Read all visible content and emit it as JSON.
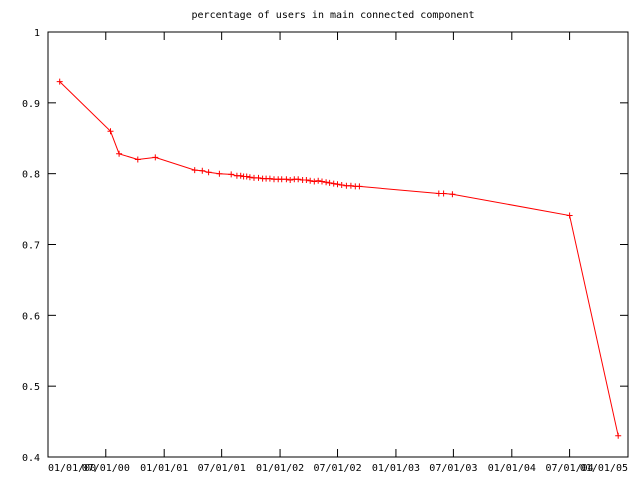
{
  "chart_data": {
    "type": "line",
    "title": "percentage of users in main connected component",
    "xlabel": "",
    "ylabel": "",
    "ylim": [
      0.4,
      1.0
    ],
    "grid": false,
    "legend": "none",
    "yticks": [
      "0.4",
      "0.5",
      "0.6",
      "0.7",
      "0.8",
      "0.9",
      "1"
    ],
    "xticks": [
      "01/01/00",
      "07/01/00",
      "01/01/01",
      "07/01/01",
      "01/01/02",
      "07/01/02",
      "01/01/03",
      "07/01/03",
      "01/01/04",
      "07/01/04",
      "01/01/05"
    ],
    "series_color": "#ff0000",
    "series": [
      {
        "name": "",
        "x": [
          "2000-02-07",
          "2000-07-16",
          "2000-08-12",
          "2000-10-10",
          "2000-12-04",
          "2001-04-07",
          "2001-05-01",
          "2001-05-21",
          "2001-06-24",
          "2001-07-31",
          "2001-08-18",
          "2001-08-30",
          "2001-09-08",
          "2001-09-18",
          "2001-09-28",
          "2001-10-11",
          "2001-10-25",
          "2001-11-07",
          "2001-11-18",
          "2001-11-30",
          "2001-12-13",
          "2001-12-26",
          "2002-01-06",
          "2002-01-21",
          "2002-02-02",
          "2002-02-15",
          "2002-02-27",
          "2002-03-13",
          "2002-03-25",
          "2002-04-06",
          "2002-04-19",
          "2002-05-01",
          "2002-05-13",
          "2002-05-26",
          "2002-06-06",
          "2002-06-19",
          "2002-07-01",
          "2002-07-14",
          "2002-07-29",
          "2002-08-12",
          "2002-08-26",
          "2002-09-08",
          "2003-05-16",
          "2003-05-31",
          "2003-06-28",
          "2004-07-01",
          "2004-12-01"
        ],
        "values": [
          0.93,
          0.86,
          0.828,
          0.82,
          0.823,
          0.805,
          0.804,
          0.802,
          0.8,
          0.799,
          0.797,
          0.797,
          0.796,
          0.796,
          0.795,
          0.794,
          0.794,
          0.793,
          0.793,
          0.793,
          0.792,
          0.792,
          0.792,
          0.792,
          0.791,
          0.792,
          0.792,
          0.791,
          0.791,
          0.79,
          0.789,
          0.79,
          0.789,
          0.788,
          0.787,
          0.786,
          0.785,
          0.784,
          0.783,
          0.783,
          0.782,
          0.782,
          0.772,
          0.772,
          0.771,
          0.741,
          0.43
        ]
      }
    ]
  }
}
